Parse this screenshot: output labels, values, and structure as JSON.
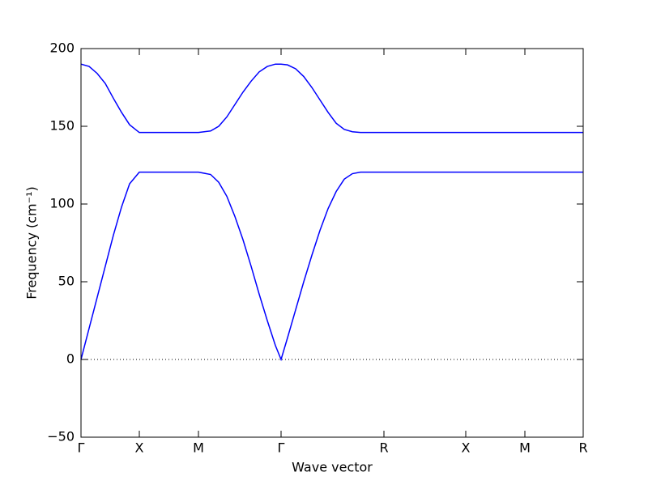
{
  "chart_data": {
    "type": "line",
    "xlabel": "Wave vector",
    "ylabel": "Frequency (cm⁻¹)",
    "x": [
      0,
      0.1,
      0.2,
      0.3,
      0.4,
      0.5,
      0.6,
      0.72,
      0.9,
      1.1,
      1.3,
      1.45,
      1.6,
      1.7,
      1.8,
      1.9,
      2.0,
      2.1,
      2.2,
      2.3,
      2.4,
      2.47,
      2.55,
      2.65,
      2.75,
      2.85,
      2.95,
      3.05,
      3.15,
      3.25,
      3.35,
      3.45,
      3.6,
      3.74,
      4.2,
      4.75,
      5.1,
      5.48,
      5.8,
      6.2
    ],
    "series": [
      {
        "color": "#0000ff",
        "values": [
          190,
          188.5,
          184,
          177.5,
          168,
          159,
          151,
          146,
          146,
          146,
          146,
          146,
          147,
          150,
          156,
          164,
          172,
          179,
          185,
          188.5,
          190,
          190,
          189.5,
          187,
          182,
          175,
          167,
          159,
          152,
          148,
          146.5,
          146,
          146,
          146,
          146,
          146,
          146,
          146,
          146,
          146
        ]
      },
      {
        "color": "#0000ff",
        "values": [
          0,
          20,
          40,
          60,
          80,
          98,
          113,
          120.5,
          120.5,
          120.5,
          120.5,
          120.5,
          119,
          114,
          105,
          92,
          77,
          60,
          42,
          25,
          9,
          0,
          14,
          32,
          50,
          67,
          83,
          97,
          108,
          116,
          119.5,
          120.5,
          120.5,
          120.5,
          120.5,
          120.5,
          120.5,
          120.5,
          120.5,
          120.5
        ]
      }
    ],
    "xlim": [
      0,
      6.2
    ],
    "xticks": [
      {
        "value": 0,
        "label": "Γ"
      },
      {
        "value": 0.72,
        "label": "X"
      },
      {
        "value": 1.45,
        "label": "M"
      },
      {
        "value": 2.47,
        "label": "Γ"
      },
      {
        "value": 3.74,
        "label": "R"
      },
      {
        "value": 4.75,
        "label": "X"
      },
      {
        "value": 5.48,
        "label": "M"
      },
      {
        "value": 6.2,
        "label": "R"
      }
    ],
    "ylim": [
      -50,
      200
    ],
    "yticks": [
      {
        "value": -50,
        "label": "−50"
      },
      0,
      50,
      100,
      150,
      200
    ],
    "hline": 0,
    "grid": false
  }
}
